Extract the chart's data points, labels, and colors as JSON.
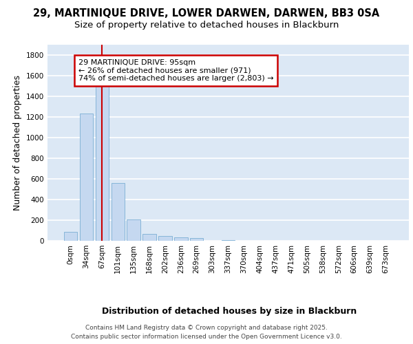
{
  "title_line1": "29, MARTINIQUE DRIVE, LOWER DARWEN, DARWEN, BB3 0SA",
  "title_line2": "Size of property relative to detached houses in Blackburn",
  "xlabel": "Distribution of detached houses by size in Blackburn",
  "ylabel": "Number of detached properties",
  "bar_color": "#c5d8f0",
  "bar_edge_color": "#7bafd4",
  "background_color": "#dce8f5",
  "grid_color": "#ffffff",
  "categories": [
    "0sqm",
    "34sqm",
    "67sqm",
    "101sqm",
    "135sqm",
    "168sqm",
    "202sqm",
    "236sqm",
    "269sqm",
    "303sqm",
    "337sqm",
    "370sqm",
    "404sqm",
    "437sqm",
    "471sqm",
    "505sqm",
    "538sqm",
    "572sqm",
    "606sqm",
    "639sqm",
    "673sqm"
  ],
  "values": [
    90,
    1235,
    1515,
    560,
    210,
    65,
    45,
    35,
    25,
    0,
    10,
    0,
    0,
    0,
    0,
    0,
    0,
    0,
    0,
    0,
    0
  ],
  "ylim": [
    0,
    1900
  ],
  "yticks": [
    0,
    200,
    400,
    600,
    800,
    1000,
    1200,
    1400,
    1600,
    1800
  ],
  "vline_x": 2.5,
  "marker_label_line1": "29 MARTINIQUE DRIVE: 95sqm",
  "marker_label_line2": "← 26% of detached houses are smaller (971)",
  "marker_label_line3": "74% of semi-detached houses are larger (2,803) →",
  "annotation_box_color": "#ffffff",
  "annotation_box_edge": "#cc0000",
  "vline_color": "#cc0000",
  "footer_line1": "Contains HM Land Registry data © Crown copyright and database right 2025.",
  "footer_line2": "Contains public sector information licensed under the Open Government Licence v3.0.",
  "title_fontsize": 10.5,
  "subtitle_fontsize": 9.5,
  "axis_label_fontsize": 9,
  "tick_fontsize": 7.5,
  "annotation_fontsize": 8,
  "footer_fontsize": 6.5
}
